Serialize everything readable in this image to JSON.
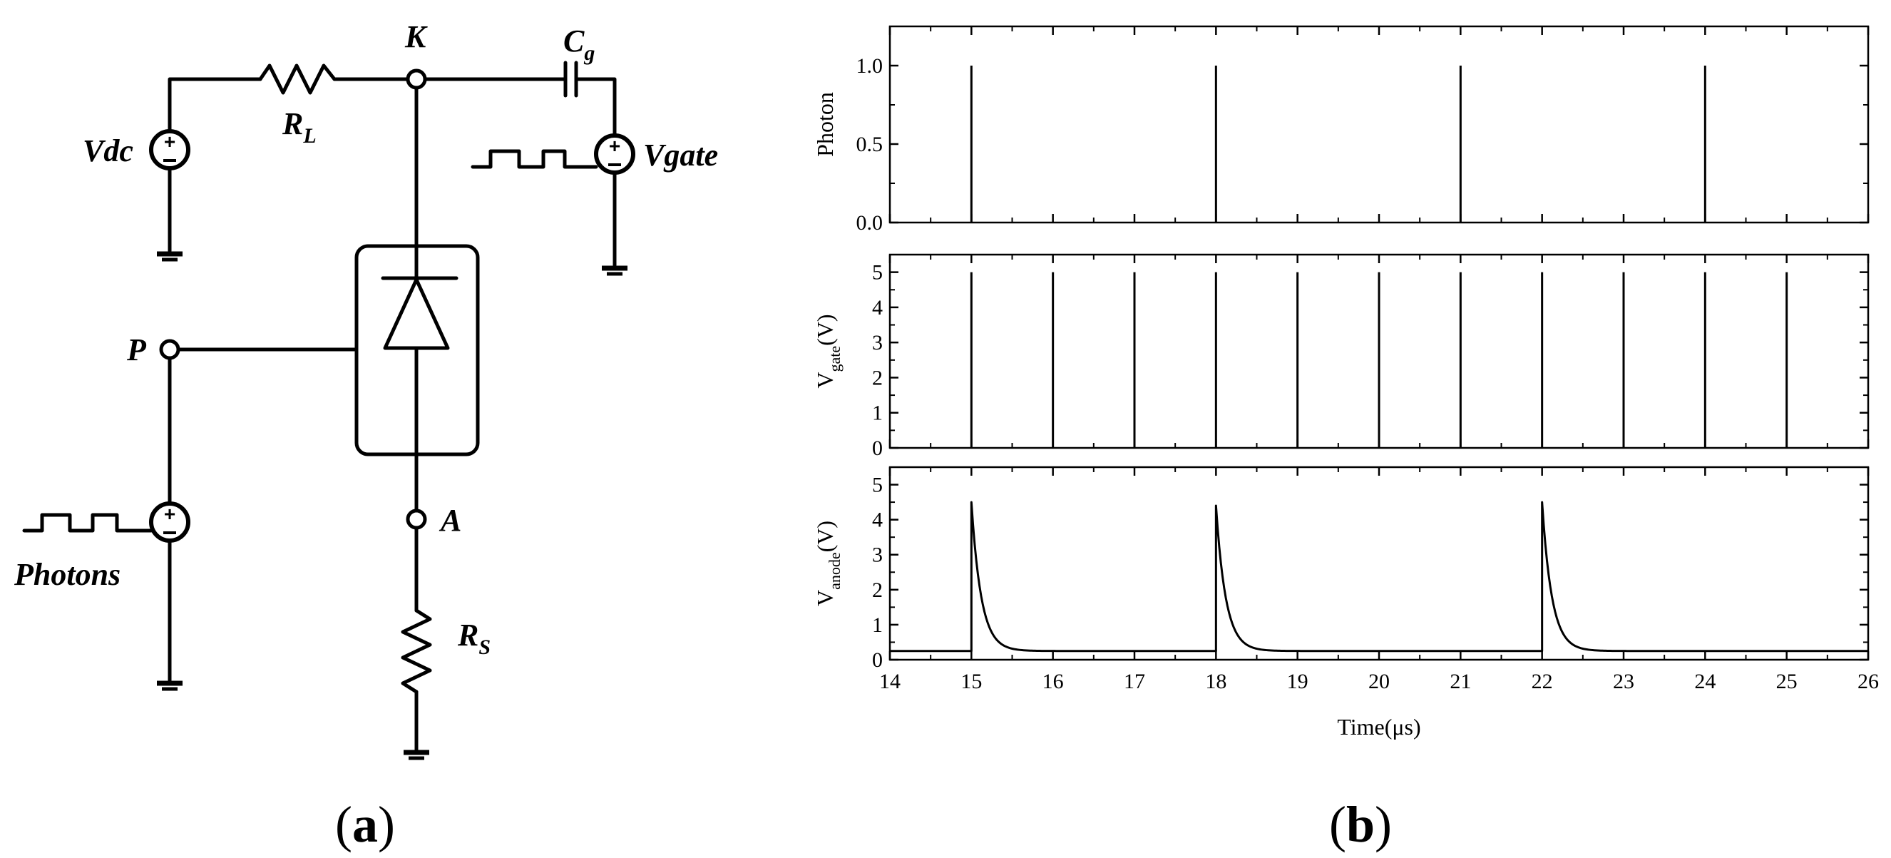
{
  "circuit": {
    "labels": {
      "K": "K",
      "C": "C",
      "C_sub": "g",
      "Vdc": "Vdc",
      "R": "R",
      "RL_sub": "L",
      "Vgate": "Vgate",
      "P": "P",
      "A": "A",
      "Photons": "Photons",
      "RS_sub": "S"
    },
    "caption": {
      "open": "(",
      "letter": "a",
      "close": ")"
    }
  },
  "plots": {
    "caption": {
      "open": "(",
      "letter": "b",
      "close": ")"
    },
    "x_axis": {
      "label": "Time(μs)",
      "range": [
        14,
        26
      ],
      "ticks": [
        "14",
        "15",
        "16",
        "17",
        "18",
        "19",
        "20",
        "21",
        "22",
        "23",
        "24",
        "25",
        "26"
      ]
    }
  },
  "chart_data": [
    {
      "type": "line",
      "ylabel": "Photon",
      "ylim": [
        0,
        1.25
      ],
      "yticks": [
        "0.0",
        "0.5",
        "1.0"
      ],
      "pulse_times": [
        15,
        18,
        21,
        24
      ],
      "pulse_height": 1.0
    },
    {
      "type": "line",
      "ylabel_main": "V",
      "ylabel_sub": "gate",
      "ylabel_unit": "(V)",
      "ylim": [
        0,
        5.5
      ],
      "yticks": [
        "0",
        "1",
        "2",
        "3",
        "4",
        "5"
      ],
      "pulse_times": [
        15,
        16,
        17,
        18,
        19,
        20,
        21,
        22,
        23,
        24,
        25
      ],
      "pulse_height": 5
    },
    {
      "type": "line",
      "ylabel_main": "V",
      "ylabel_sub": "anode",
      "ylabel_unit": "(V)",
      "ylim": [
        0,
        5.5
      ],
      "yticks": [
        "0",
        "1",
        "2",
        "3",
        "4",
        "5"
      ],
      "baseline": 0.25,
      "peaks": [
        {
          "t": 15,
          "v": 4.5
        },
        {
          "t": 18,
          "v": 4.4
        },
        {
          "t": 22,
          "v": 4.5
        }
      ],
      "decay_tau_us": 0.12
    }
  ]
}
